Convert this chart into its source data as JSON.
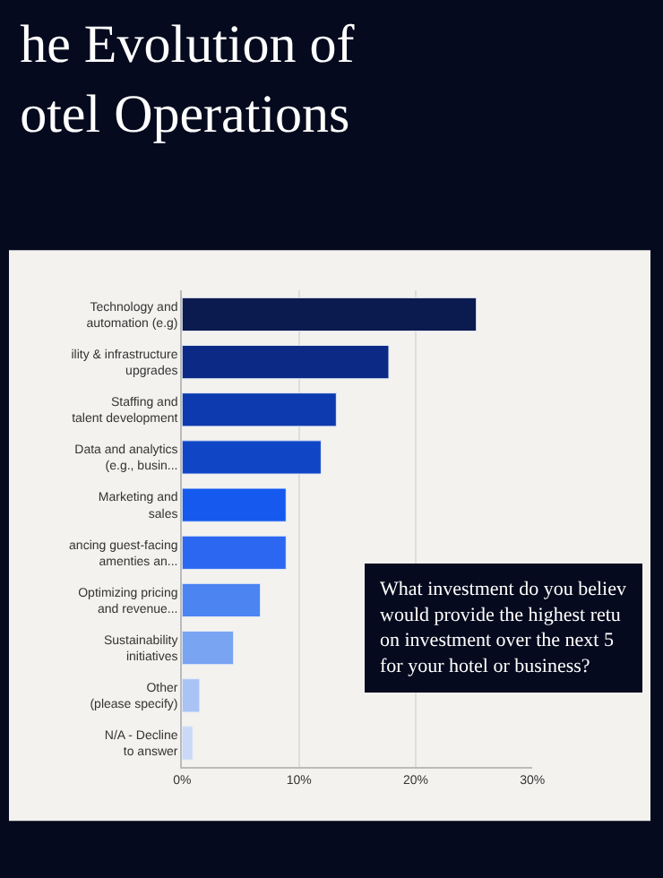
{
  "chart_data": {
    "type": "bar",
    "orientation": "horizontal",
    "title": "he Evolution of\notel Operations",
    "categories": [
      "Technology and\nautomation (e.g)",
      "ility & infrastructure\nupgrades",
      "Staffing and\ntalent development",
      "Data and analytics\n(e.g., busin...",
      "Marketing and\nsales",
      "ancing guest-facing\namenties an...",
      "Optimizing pricing\nand revenue...",
      "Sustainability\ninitiatives",
      "Other\n(please specify)",
      "N/A - Decline\nto answer"
    ],
    "values": [
      25.2,
      17.7,
      13.2,
      11.9,
      8.9,
      8.9,
      6.7,
      4.4,
      1.5,
      0.9
    ],
    "colors": [
      "#0b1a4f",
      "#0c2a85",
      "#0d3aae",
      "#1046c6",
      "#1559ee",
      "#2b67f0",
      "#4c84f1",
      "#79a4f2",
      "#a9c3f5",
      "#c9d9f7"
    ],
    "xlim": [
      0,
      30
    ],
    "xticks": [
      {
        "value": 0,
        "label": "0%"
      },
      {
        "value": 10,
        "label": "10%"
      },
      {
        "value": 20,
        "label": "20%"
      },
      {
        "value": 30,
        "label": "30%"
      }
    ],
    "grid": "x",
    "annotations": [
      "What investment do you believ\nwould provide the highest retu\non investment over the next 5\nfor your hotel or business?"
    ]
  }
}
